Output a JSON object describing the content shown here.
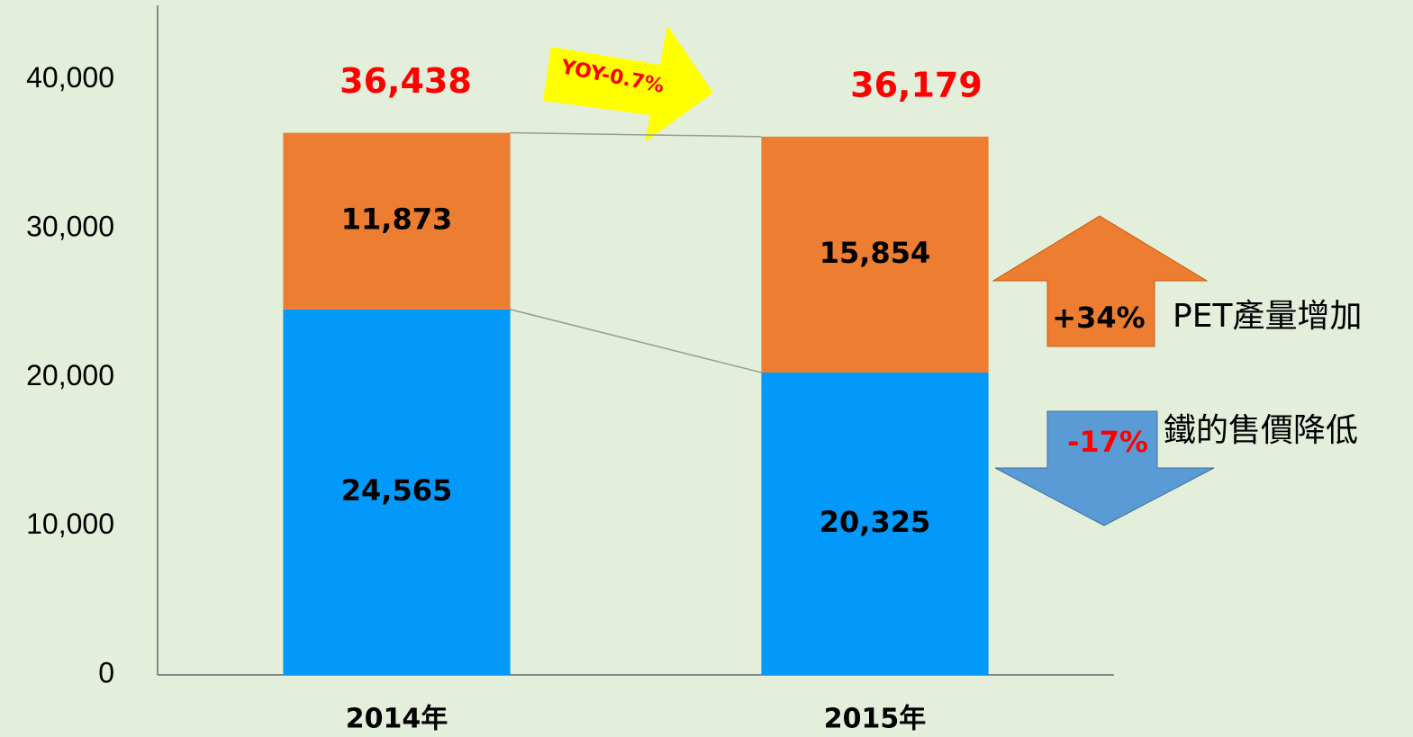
{
  "chart_data": {
    "type": "stacked_bar",
    "categories": [
      "2014年",
      "2015年"
    ],
    "series": [
      {
        "color": "#0399fb",
        "values": [
          24565,
          20325
        ],
        "value_labels": [
          "24,565",
          "20,325"
        ]
      },
      {
        "color": "#ed7d31",
        "values": [
          11873,
          15854
        ],
        "value_labels": [
          "11,873",
          "15,854"
        ]
      }
    ],
    "total_labels": [
      "36,438",
      "36,179"
    ],
    "ylim": [
      0,
      45000
    ],
    "yticks": [
      0,
      {
        "value": 10000,
        "label": "10,000"
      },
      {
        "value": 20000,
        "label": "20,000"
      },
      {
        "value": 30000,
        "label": "30,000"
      },
      {
        "value": 40000,
        "label": "40,000"
      }
    ],
    "grid": false,
    "annotations": {
      "yoy": "YOY-0.7%",
      "pet_change": "+34%",
      "pet_text": "PET產量增加",
      "iron_change": "-17%",
      "iron_text": "鐵的售價降低"
    }
  }
}
